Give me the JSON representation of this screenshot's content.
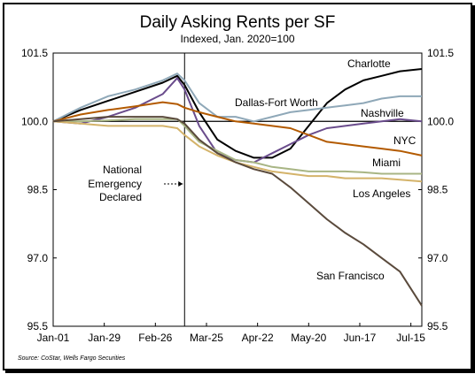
{
  "chart_data": {
    "type": "line",
    "title": "Daily Asking Rents per SF",
    "subtitle": "Indexed, Jan. 2020=100",
    "source": "Source: CoStar, Wells Fargo Securities",
    "x_ticks": [
      "Jan-01",
      "Jan-29",
      "Feb-26",
      "Mar-25",
      "Apr-22",
      "May-20",
      "Jun-17",
      "Jul-15"
    ],
    "y_ticks": [
      "95.5",
      "97.0",
      "98.5",
      "100.0",
      "101.5"
    ],
    "ylim": [
      95.5,
      101.5
    ],
    "xlim_days": [
      0,
      202
    ],
    "grid": false,
    "annotation": {
      "lines": [
        "National",
        "Emergency",
        "Declared"
      ],
      "day": 72
    },
    "series": [
      {
        "name": "Charlotte",
        "color": "#000000",
        "x": [
          0,
          15,
          30,
          45,
          60,
          68,
          72,
          80,
          90,
          100,
          110,
          120,
          130,
          140,
          150,
          160,
          170,
          180,
          190,
          202
        ],
        "y": [
          100,
          100.25,
          100.45,
          100.65,
          100.85,
          101.0,
          100.8,
          100.2,
          99.6,
          99.35,
          99.2,
          99.2,
          99.4,
          99.9,
          100.4,
          100.7,
          100.9,
          101.0,
          101.1,
          101.15
        ]
      },
      {
        "name": "Dallas-Fort Worth",
        "color": "#8fa8b8",
        "x": [
          0,
          15,
          30,
          45,
          60,
          68,
          72,
          80,
          90,
          100,
          110,
          120,
          130,
          140,
          150,
          160,
          170,
          180,
          190,
          202
        ],
        "y": [
          100,
          100.3,
          100.55,
          100.7,
          100.9,
          101.05,
          100.9,
          100.4,
          100.1,
          100.1,
          100.0,
          100.1,
          100.2,
          100.25,
          100.3,
          100.35,
          100.4,
          100.5,
          100.55,
          100.55
        ]
      },
      {
        "name": "Nashville",
        "color": "#6a4c8c",
        "x": [
          0,
          15,
          30,
          45,
          60,
          68,
          72,
          80,
          90,
          100,
          110,
          120,
          130,
          140,
          150,
          160,
          170,
          180,
          190,
          202
        ],
        "y": [
          100,
          99.95,
          100.1,
          100.3,
          100.6,
          100.95,
          100.7,
          99.9,
          99.3,
          99.15,
          99.1,
          99.3,
          99.5,
          99.7,
          99.85,
          99.9,
          99.95,
          100.0,
          100.05,
          100.0
        ]
      },
      {
        "name": "NYC",
        "color": "#b35a00",
        "x": [
          0,
          15,
          30,
          45,
          60,
          68,
          72,
          80,
          90,
          100,
          110,
          120,
          130,
          140,
          150,
          160,
          170,
          180,
          190,
          202
        ],
        "y": [
          100,
          100.15,
          100.25,
          100.33,
          100.42,
          100.38,
          100.3,
          100.2,
          100.1,
          100.0,
          99.95,
          99.9,
          99.85,
          99.7,
          99.55,
          99.5,
          99.45,
          99.4,
          99.35,
          99.25
        ]
      },
      {
        "name": "Miami",
        "color": "#a8b584",
        "x": [
          0,
          15,
          30,
          45,
          60,
          68,
          72,
          80,
          90,
          100,
          110,
          120,
          130,
          140,
          150,
          160,
          170,
          180,
          190,
          202
        ],
        "y": [
          100,
          100.0,
          100.02,
          100.05,
          100.05,
          100.05,
          99.9,
          99.55,
          99.35,
          99.15,
          99.1,
          99.0,
          98.95,
          98.9,
          98.9,
          98.9,
          98.88,
          98.85,
          98.85,
          98.85
        ]
      },
      {
        "name": "Los Angeles",
        "color": "#d4b36a",
        "x": [
          0,
          15,
          30,
          45,
          60,
          68,
          72,
          80,
          90,
          100,
          110,
          120,
          130,
          140,
          150,
          160,
          170,
          180,
          190,
          202
        ],
        "y": [
          100,
          99.95,
          99.9,
          99.9,
          99.9,
          99.85,
          99.7,
          99.45,
          99.25,
          99.1,
          99.0,
          98.9,
          98.85,
          98.8,
          98.8,
          98.75,
          98.75,
          98.75,
          98.72,
          98.68
        ]
      },
      {
        "name": "San Francisco",
        "color": "#5a4a3c",
        "x": [
          0,
          15,
          30,
          45,
          60,
          68,
          72,
          80,
          90,
          100,
          110,
          120,
          130,
          140,
          150,
          160,
          170,
          180,
          190,
          202
        ],
        "y": [
          100,
          100.05,
          100.1,
          100.1,
          100.1,
          100.05,
          99.95,
          99.6,
          99.3,
          99.1,
          98.95,
          98.85,
          98.55,
          98.2,
          97.85,
          97.55,
          97.3,
          97.0,
          96.7,
          95.95
        ]
      }
    ],
    "series_labels": [
      {
        "name": "Charlotte",
        "anchor": "start"
      },
      {
        "name": "Dallas-Fort Worth",
        "anchor": "start"
      },
      {
        "name": "Nashville",
        "anchor": "start"
      },
      {
        "name": "NYC",
        "anchor": "start"
      },
      {
        "name": "Miami",
        "anchor": "start"
      },
      {
        "name": "Los Angeles",
        "anchor": "start"
      },
      {
        "name": "San Francisco",
        "anchor": "start"
      }
    ]
  }
}
